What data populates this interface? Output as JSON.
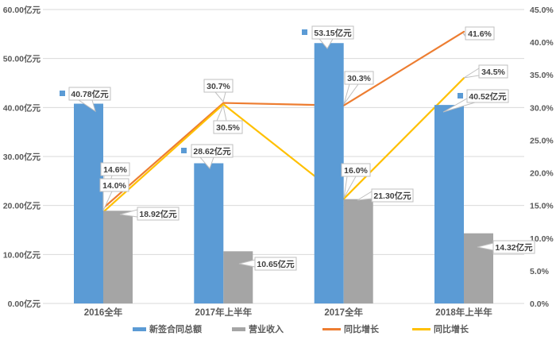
{
  "chart_data": {
    "type": "combo",
    "title": "",
    "categories": [
      "2016全年",
      "2017年上半年",
      "2017全年",
      "2018年上半年"
    ],
    "series": [
      {
        "name": "新签合同总额",
        "type": "bar",
        "axis": "left",
        "color": "#5B9BD5",
        "values": [
          40.78,
          28.62,
          53.15,
          40.52
        ],
        "point_labels": [
          "40.78亿元",
          "28.62亿元",
          "53.15亿元",
          "40.52亿元"
        ]
      },
      {
        "name": "营业收入",
        "type": "bar",
        "axis": "left",
        "color": "#A5A5A5",
        "values": [
          18.92,
          10.65,
          21.3,
          14.32
        ],
        "point_labels": [
          "18.92亿元",
          "10.65亿元",
          "21.30亿元",
          "14.32亿元"
        ]
      },
      {
        "name": "同比增长",
        "type": "line",
        "axis": "right",
        "color": "#ED7D31",
        "values": [
          14.6,
          30.7,
          30.3,
          41.6
        ],
        "point_labels": [
          "14.6%",
          "30.7%",
          "30.3%",
          "41.6%"
        ]
      },
      {
        "name": "同比增长",
        "type": "line",
        "axis": "right",
        "color": "#FFC000",
        "values": [
          14.0,
          30.5,
          16.0,
          34.5
        ],
        "point_labels": [
          "14.0%",
          "30.5%",
          "16.0%",
          "34.5%"
        ]
      }
    ],
    "left_axis": {
      "min": 0,
      "max": 60,
      "step": 10,
      "tick_labels": [
        "0.00亿元",
        "10.00亿元",
        "20.00亿元",
        "30.00亿元",
        "40.00亿元",
        "50.00亿元",
        "60.00亿元"
      ]
    },
    "right_axis": {
      "min": 0,
      "max": 45,
      "step": 5,
      "tick_labels": [
        "0.0%",
        "5.0%",
        "10.0%",
        "15.0%",
        "20.0%",
        "25.0%",
        "30.0%",
        "35.0%",
        "40.0%",
        "45.0%"
      ]
    },
    "grid": true,
    "legend_position": "bottom",
    "colors": {
      "gridline": "#D9D9D9",
      "axis_text": "#595959",
      "callout_text": "#404040",
      "callout_border": "#BFBFBF",
      "background": "#FFFFFF"
    }
  }
}
